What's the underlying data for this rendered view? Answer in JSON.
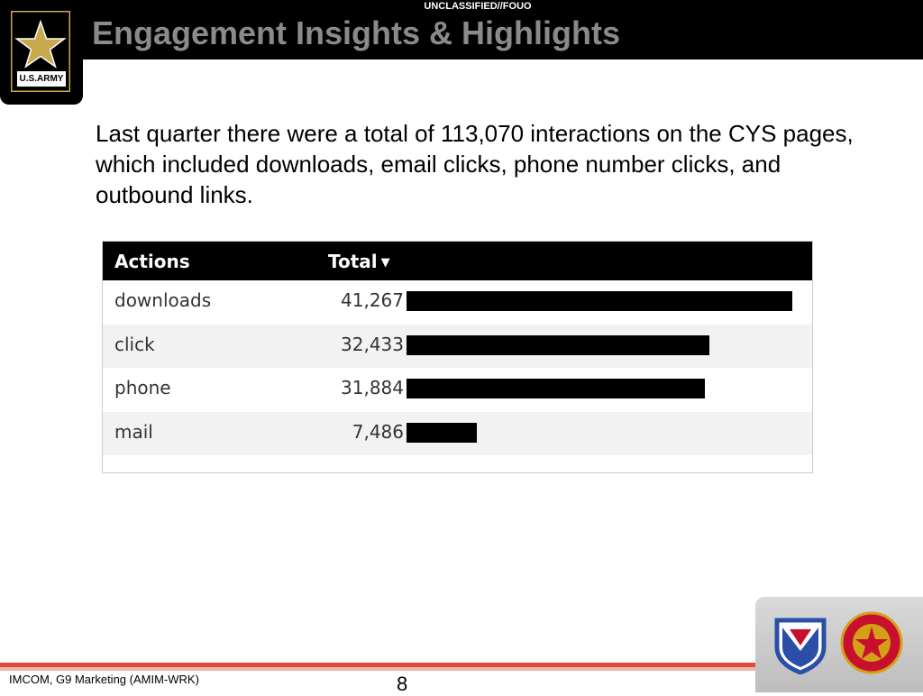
{
  "header": {
    "classification": "UNCLASSIFIED//FOUO",
    "title": "Engagement Insights & Highlights",
    "logo": {
      "wordmark": "U.S.ARMY",
      "icon": "army-star-icon"
    }
  },
  "intro": "Last quarter there were a total of 113,070 interactions on the CYS pages, which included downloads, email clicks, phone number clicks, and outbound links.",
  "table": {
    "columns": {
      "actions": "Actions",
      "total": "Total"
    },
    "sort_icon": "sort-descending-icon",
    "rows": [
      {
        "action": "downloads",
        "total": "41,267",
        "value": 41267
      },
      {
        "action": "click",
        "total": "32,433",
        "value": 32433
      },
      {
        "action": "phone",
        "total": "31,884",
        "value": 31884
      },
      {
        "action": "mail",
        "total": "7,486",
        "value": 7486
      }
    ]
  },
  "footer": {
    "org": "IMCOM, G9 Marketing (AMIM-WRK)",
    "page": "8",
    "insignia": [
      "army-materiel-command-patch-icon",
      "installation-support-seal-icon"
    ]
  }
}
